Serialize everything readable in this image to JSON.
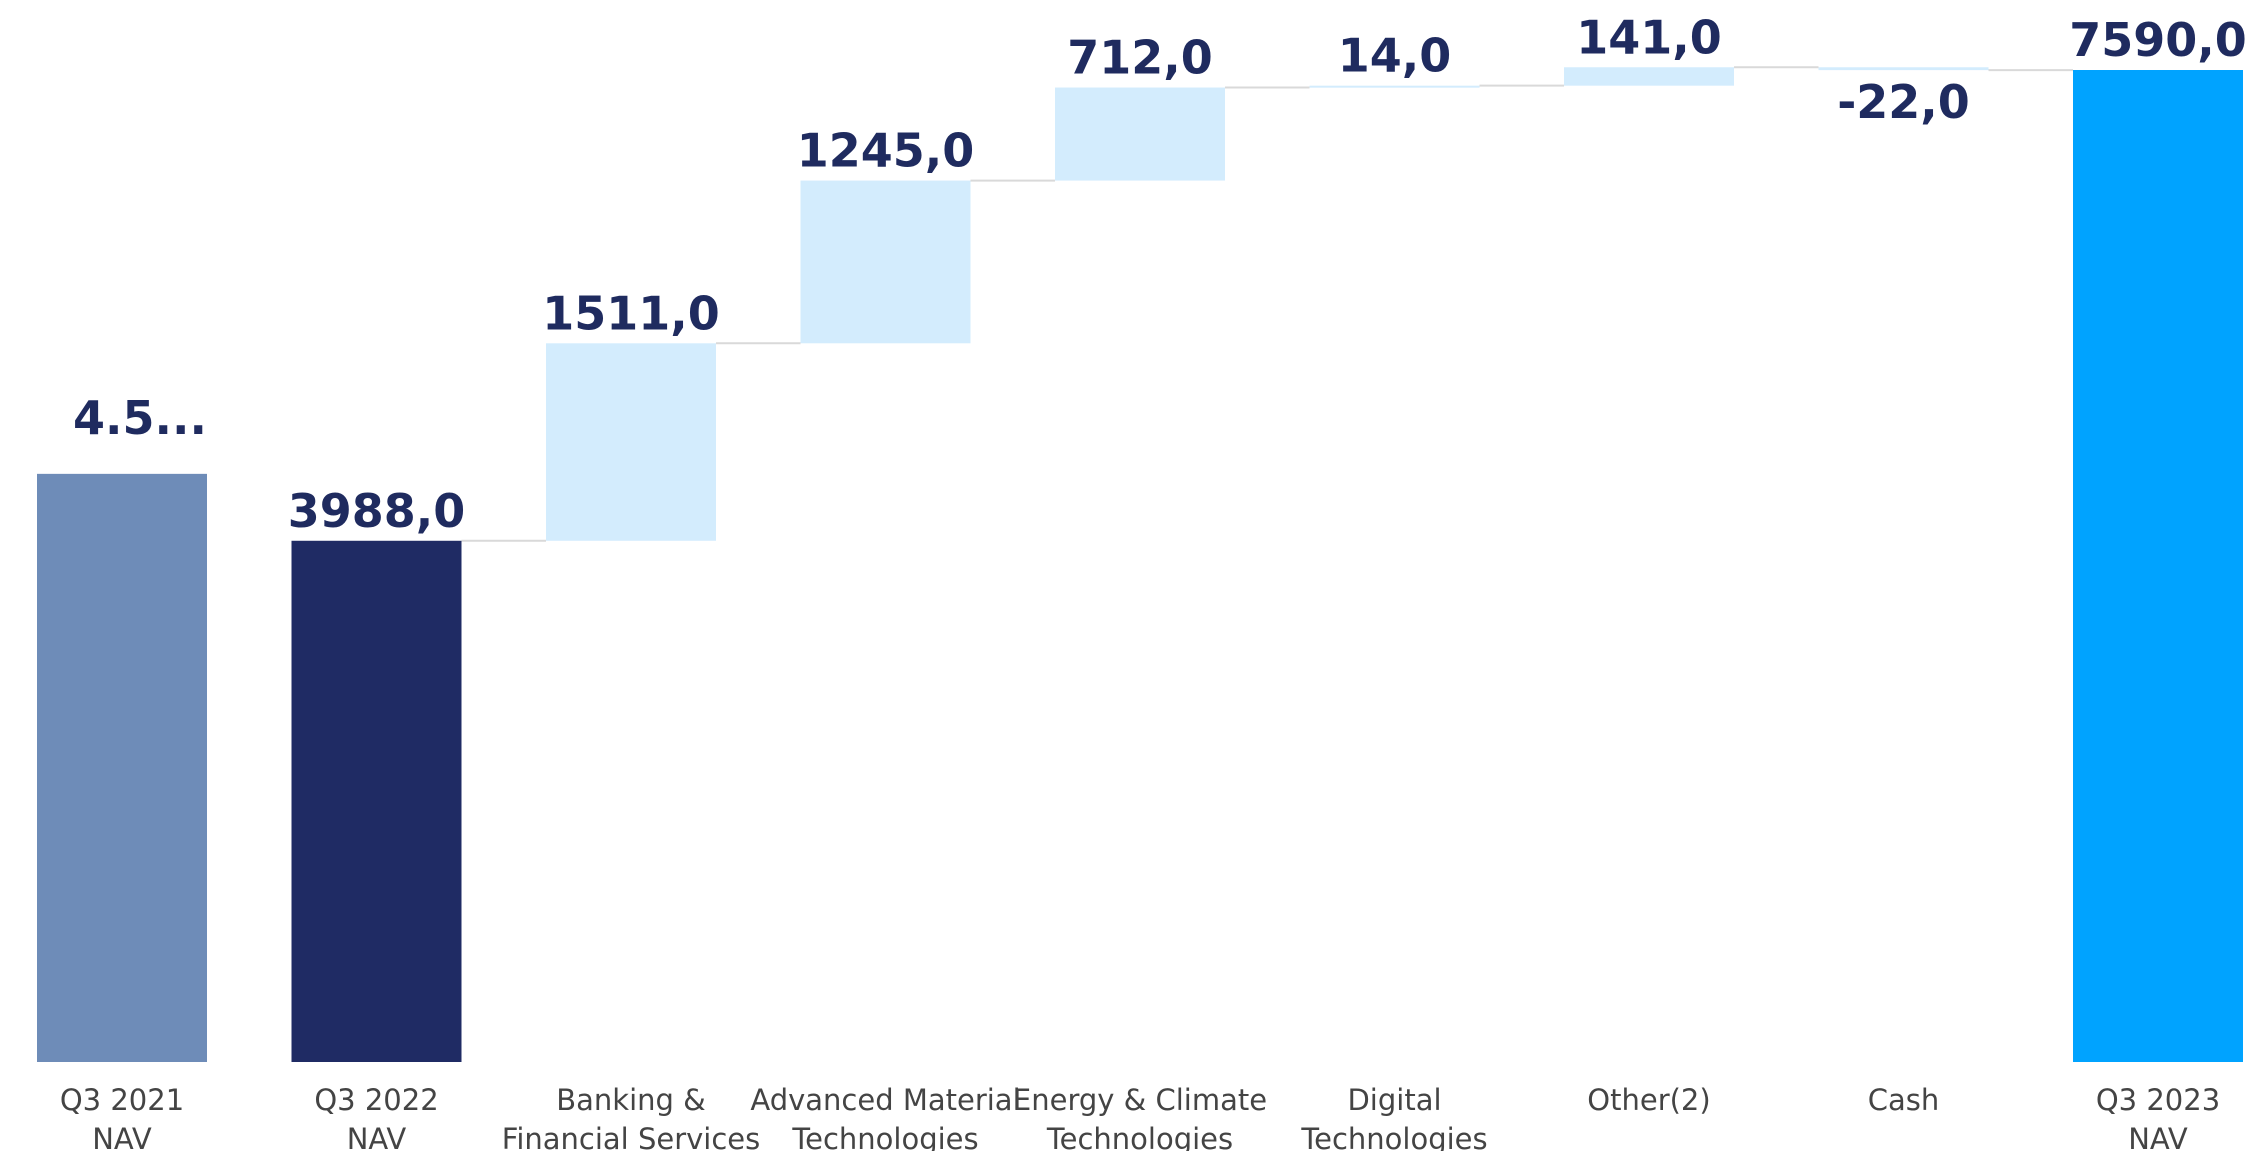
{
  "chart_data": {
    "type": "bar",
    "subtype": "waterfall",
    "title": "",
    "xlabel": "",
    "ylabel": "",
    "ylim": [
      0,
      7600
    ],
    "grid": false,
    "legend": "none",
    "categories": [
      [
        "Q3 2021",
        "NAV"
      ],
      [
        "Q3 2022",
        "NAV"
      ],
      [
        "Banking &",
        "Financial Services"
      ],
      [
        "Advanced Material",
        "Technologies"
      ],
      [
        "Energy & Climate",
        "Technologies"
      ],
      [
        "Digital",
        "Technologies"
      ],
      [
        "Other(2)"
      ],
      [
        "Cash"
      ],
      [
        "Q3 2023",
        "NAV"
      ]
    ],
    "bars": [
      {
        "kind": "total",
        "value": 4500,
        "label": "4.5...",
        "color": "#6e8cb8"
      },
      {
        "kind": "total",
        "value": 3988,
        "label": "3988,0",
        "color": "#1f2b64"
      },
      {
        "kind": "delta",
        "value": 1511,
        "label": "1511,0",
        "color": "#d3ecfd"
      },
      {
        "kind": "delta",
        "value": 1245,
        "label": "1245,0",
        "color": "#d3ecfd"
      },
      {
        "kind": "delta",
        "value": 712,
        "label": "712,0",
        "color": "#d3ecfd"
      },
      {
        "kind": "delta",
        "value": 14,
        "label": "14,0",
        "color": "#d3ecfd"
      },
      {
        "kind": "delta",
        "value": 141,
        "label": "141,0",
        "color": "#d3ecfd"
      },
      {
        "kind": "delta",
        "value": -22,
        "label": "-22,0",
        "color": "#d3ecfd"
      },
      {
        "kind": "total",
        "value": 7590,
        "label": "7590,0",
        "color": "#00a3ff"
      }
    ],
    "connector_color": "#d9d9d9",
    "label_color": "#1f2b5f",
    "category_label_color": "#444444"
  }
}
